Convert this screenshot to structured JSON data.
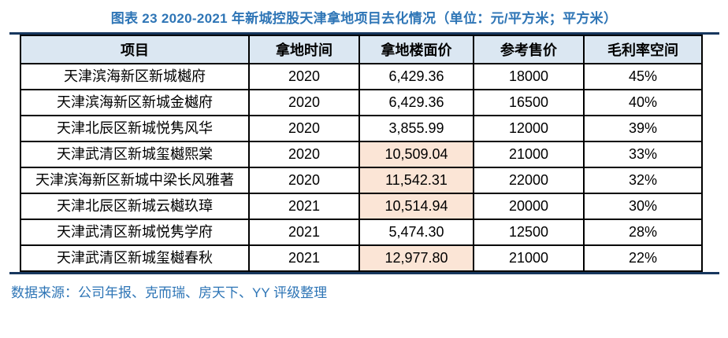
{
  "title": "图表 23 2020-2021 年新城控股天津拿地项目去化情况（单位：元/平方米；平方米）",
  "source": "数据来源：公司年报、克而瑞、房天下、YY 评级整理",
  "colors": {
    "title_blue": "#2e75b6",
    "rule_navy": "#17375e",
    "header_bg": "#dbe7f2",
    "highlight_bg": "#fbe5d6",
    "border": "#000000"
  },
  "chart_data": {
    "type": "table",
    "title": "图表 23 2020-2021 年新城控股天津拿地项目去化情况（单位：元/平方米；平方米）",
    "columns": [
      "项目",
      "拿地时间",
      "拿地楼面价",
      "参考售价",
      "毛利率空间"
    ],
    "rows": [
      {
        "project": "天津滨海新区新城樾府",
        "year": "2020",
        "floor_price": "6,429.36",
        "ref_price": "18000",
        "margin": "45%",
        "highlight": false
      },
      {
        "project": "天津滨海新区新城金樾府",
        "year": "2020",
        "floor_price": "6,429.36",
        "ref_price": "16500",
        "margin": "40%",
        "highlight": false
      },
      {
        "project": "天津北辰区新城悦隽风华",
        "year": "2020",
        "floor_price": "3,855.99",
        "ref_price": "12000",
        "margin": "39%",
        "highlight": false
      },
      {
        "project": "天津武清区新城玺樾熙棠",
        "year": "2020",
        "floor_price": "10,509.04",
        "ref_price": "21000",
        "margin": "33%",
        "highlight": true
      },
      {
        "project": "天津滨海新区新城中梁长风雅著",
        "year": "2020",
        "floor_price": "11,542.31",
        "ref_price": "22000",
        "margin": "32%",
        "highlight": true
      },
      {
        "project": "天津北辰区新城云樾玖璋",
        "year": "2021",
        "floor_price": "10,514.94",
        "ref_price": "20000",
        "margin": "30%",
        "highlight": true
      },
      {
        "project": "天津武清区新城悦隽学府",
        "year": "2021",
        "floor_price": "5,474.30",
        "ref_price": "12500",
        "margin": "28%",
        "highlight": false
      },
      {
        "project": "天津武清区新城玺樾春秋",
        "year": "2021",
        "floor_price": "12,977.80",
        "ref_price": "21000",
        "margin": "22%",
        "highlight": true
      }
    ]
  }
}
